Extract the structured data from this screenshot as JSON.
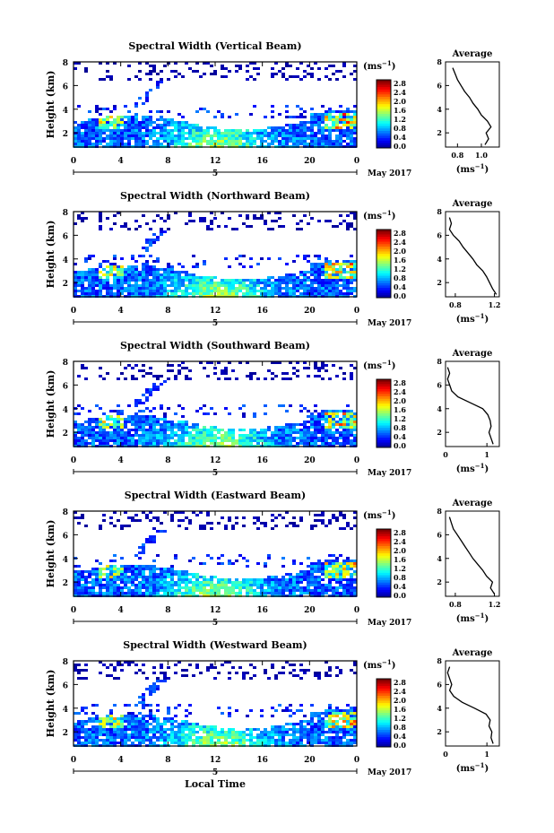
{
  "figure": {
    "xlabel": "Local Time",
    "date_label": "May 2017",
    "day_label": "5",
    "cbar_unit": "(ms",
    "cbar_unit_exp": "−1",
    "avg_title": "Average",
    "avg_unit": "(ms",
    "avg_unit_exp": "−1"
  },
  "chart_data": [
    {
      "type": "heatmap",
      "title": "Spectral Width (Vertical Beam)",
      "ylabel": "Height (km)",
      "x_ticks": [
        "0",
        "4",
        "8",
        "12",
        "16",
        "20",
        "0"
      ],
      "xlim": [
        0,
        24
      ],
      "y_ticks": [
        "2",
        "4",
        "6",
        "8"
      ],
      "ylim": [
        0.8,
        8
      ],
      "colorbar": {
        "ticks": [
          "2.8",
          "2.4",
          "2.0",
          "1.6",
          "1.2",
          "0.8",
          "0.4",
          "0.0"
        ],
        "range": [
          0,
          2.8
        ]
      },
      "average_profile": {
        "x_ticks": [
          "0.8",
          "1.0"
        ],
        "xlim": [
          0.7,
          1.15
        ],
        "y_ticks": [
          "2",
          "4",
          "6",
          "8"
        ],
        "ylim": [
          0.8,
          8
        ],
        "height": [
          1.0,
          1.5,
          2.0,
          2.5,
          3.0,
          3.5,
          4.0,
          4.5,
          5.0,
          5.5,
          6.0,
          6.5,
          7.0,
          7.5
        ],
        "width": [
          1.03,
          1.06,
          1.04,
          1.08,
          1.05,
          1.0,
          0.97,
          0.93,
          0.9,
          0.86,
          0.83,
          0.8,
          0.78,
          0.76
        ]
      }
    },
    {
      "type": "heatmap",
      "title": "Spectral Width (Northward Beam)",
      "ylabel": "Height (km)",
      "x_ticks": [
        "0",
        "4",
        "8",
        "12",
        "16",
        "20",
        "0"
      ],
      "xlim": [
        0,
        24
      ],
      "y_ticks": [
        "2",
        "4",
        "6",
        "8"
      ],
      "ylim": [
        0.8,
        8
      ],
      "colorbar": {
        "ticks": [
          "2.8",
          "2.4",
          "2.0",
          "1.6",
          "1.2",
          "0.8",
          "0.4",
          "0.0"
        ],
        "range": [
          0,
          2.8
        ]
      },
      "average_profile": {
        "x_ticks": [
          "0.8",
          "1.2"
        ],
        "xlim": [
          0.7,
          1.25
        ],
        "y_ticks": [
          "2",
          "4",
          "6",
          "8"
        ],
        "ylim": [
          0.8,
          8
        ],
        "height": [
          1.0,
          1.5,
          2.0,
          2.5,
          3.0,
          3.5,
          4.0,
          4.5,
          5.0,
          5.5,
          6.0,
          6.5,
          7.0,
          7.5
        ],
        "width": [
          1.22,
          1.18,
          1.15,
          1.12,
          1.08,
          1.02,
          0.98,
          0.93,
          0.88,
          0.84,
          0.78,
          0.74,
          0.76,
          0.74
        ]
      }
    },
    {
      "type": "heatmap",
      "title": "Spectral Width (Southward Beam)",
      "ylabel": "Height (km)",
      "x_ticks": [
        "0",
        "4",
        "8",
        "12",
        "16",
        "20",
        "0"
      ],
      "xlim": [
        0,
        24
      ],
      "y_ticks": [
        "2",
        "4",
        "6",
        "8"
      ],
      "ylim": [
        0.8,
        8
      ],
      "colorbar": {
        "ticks": [
          "2.8",
          "2.4",
          "2.0",
          "1.6",
          "1.2",
          "0.8",
          "0.4",
          "0.0"
        ],
        "range": [
          0,
          2.8
        ]
      },
      "average_profile": {
        "x_ticks": [
          "0",
          "1"
        ],
        "xlim": [
          0,
          1.3
        ],
        "y_ticks": [
          "2",
          "4",
          "6",
          "8"
        ],
        "ylim": [
          0.8,
          8
        ],
        "height": [
          1.0,
          1.5,
          2.0,
          2.5,
          3.0,
          3.5,
          4.0,
          4.5,
          5.0,
          5.5,
          6.0,
          6.5,
          7.0,
          7.5
        ],
        "width": [
          1.15,
          1.1,
          1.05,
          1.1,
          1.08,
          1.02,
          0.9,
          0.6,
          0.3,
          0.15,
          0.1,
          0.05,
          0.1,
          0.05
        ]
      }
    },
    {
      "type": "heatmap",
      "title": "Spectral Width (Eastward Beam)",
      "ylabel": "Height (km)",
      "x_ticks": [
        "0",
        "4",
        "8",
        "12",
        "16",
        "20",
        "0"
      ],
      "xlim": [
        0,
        24
      ],
      "y_ticks": [
        "2",
        "4",
        "6",
        "8"
      ],
      "ylim": [
        0.8,
        8
      ],
      "colorbar": {
        "ticks": [
          "2.8",
          "2.4",
          "2.0",
          "1.6",
          "1.2",
          "0.8",
          "0.4",
          "0.0"
        ],
        "range": [
          0,
          2.8
        ]
      },
      "average_profile": {
        "x_ticks": [
          "0.8",
          "1.2"
        ],
        "xlim": [
          0.7,
          1.25
        ],
        "y_ticks": [
          "2",
          "4",
          "6",
          "8"
        ],
        "ylim": [
          0.8,
          8
        ],
        "height": [
          1.0,
          1.5,
          2.0,
          2.5,
          3.0,
          3.5,
          4.0,
          4.5,
          5.0,
          5.5,
          6.0,
          6.5,
          7.0,
          7.5
        ],
        "width": [
          1.2,
          1.16,
          1.18,
          1.12,
          1.08,
          1.03,
          0.98,
          0.94,
          0.9,
          0.86,
          0.82,
          0.78,
          0.76,
          0.74
        ]
      }
    },
    {
      "type": "heatmap",
      "title": "Spectral Width (Westward Beam)",
      "ylabel": "Height (km)",
      "x_ticks": [
        "0",
        "4",
        "8",
        "12",
        "16",
        "20",
        "0"
      ],
      "xlim": [
        0,
        24
      ],
      "y_ticks": [
        "2",
        "4",
        "6",
        "8"
      ],
      "ylim": [
        0.8,
        8
      ],
      "colorbar": {
        "ticks": [
          "2.8",
          "2.4",
          "2.0",
          "1.6",
          "1.2",
          "0.8",
          "0.4",
          "0.0"
        ],
        "range": [
          0,
          2.8
        ]
      },
      "average_profile": {
        "x_ticks": [
          "0",
          "1"
        ],
        "xlim": [
          0,
          1.3
        ],
        "y_ticks": [
          "2",
          "4",
          "6",
          "8"
        ],
        "ylim": [
          0.8,
          8
        ],
        "height": [
          1.0,
          1.5,
          2.0,
          2.5,
          3.0,
          3.5,
          4.0,
          4.5,
          5.0,
          5.5,
          6.0,
          6.5,
          7.0,
          7.5
        ],
        "width": [
          1.15,
          1.1,
          1.12,
          1.05,
          1.08,
          0.98,
          0.7,
          0.4,
          0.2,
          0.1,
          0.15,
          0.1,
          0.05,
          0.1
        ]
      }
    }
  ]
}
